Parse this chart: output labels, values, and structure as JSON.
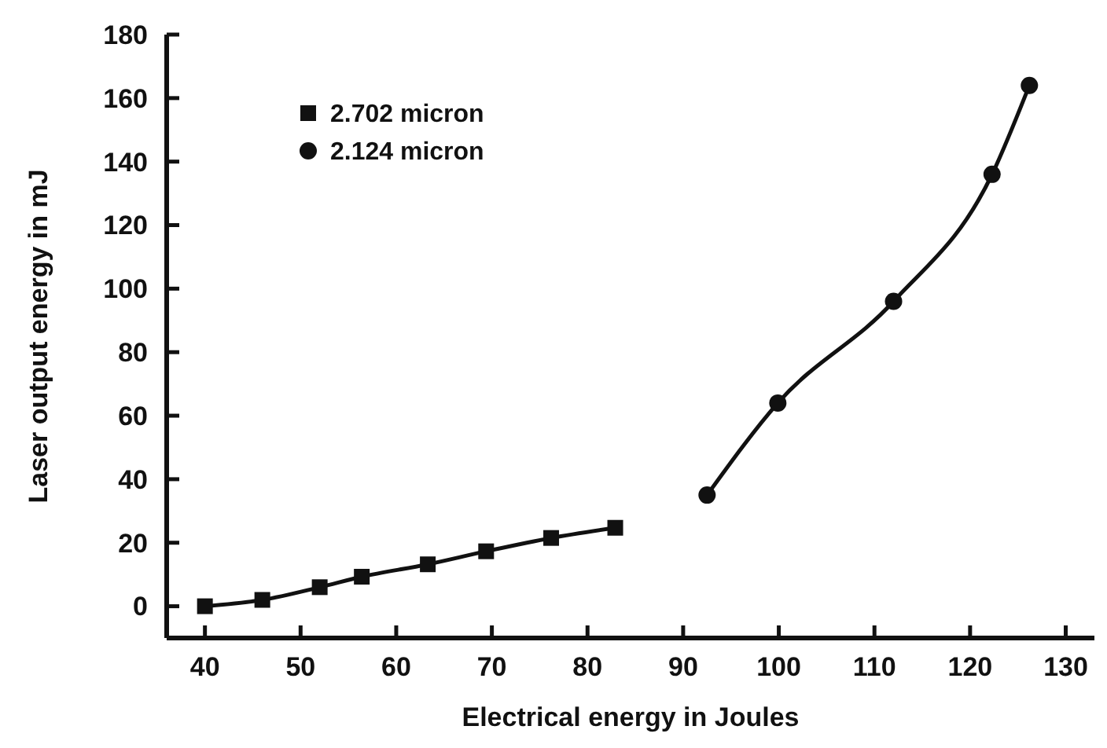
{
  "chart_data": {
    "type": "line",
    "xlabel": "Electrical energy in Joules",
    "ylabel": "Laser output energy in mJ",
    "xlim": [
      36,
      133
    ],
    "xticks": [
      40,
      50,
      60,
      70,
      80,
      90,
      100,
      110,
      120,
      130
    ],
    "ylim": [
      -10,
      180
    ],
    "yticks": [
      0,
      20,
      40,
      60,
      80,
      100,
      120,
      140,
      160,
      180
    ],
    "grid": false,
    "legend": "top left",
    "line_style": "solid",
    "series": [
      {
        "name": "2.702 micron",
        "color": "#111111",
        "marker": "square",
        "x": [
          40,
          46,
          52,
          56.4,
          63.3,
          69.4,
          76.2,
          82.9
        ],
        "values": [
          0,
          2,
          6,
          9.3,
          13.2,
          17.3,
          21.5,
          24.7
        ]
      },
      {
        "name": "2.124 micron",
        "color": "#111111",
        "marker": "circle",
        "x": [
          92.5,
          99.9,
          112,
          122.3,
          126.2
        ],
        "values": [
          35,
          64,
          96,
          136,
          164
        ]
      }
    ]
  }
}
